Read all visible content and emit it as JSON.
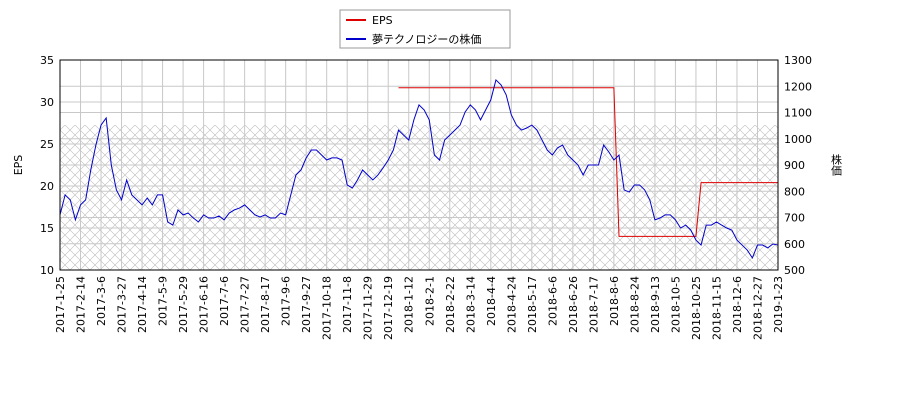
{
  "chart_data": {
    "type": "line",
    "categories": [
      "2017-1-25",
      null,
      null,
      null,
      "2017-2-14",
      null,
      null,
      null,
      "2017-3-6",
      null,
      null,
      null,
      "2017-3-27",
      null,
      null,
      null,
      "2017-4-14",
      null,
      null,
      null,
      "2017-5-9",
      null,
      null,
      null,
      "2017-5-29",
      null,
      null,
      null,
      "2017-6-16",
      null,
      null,
      null,
      "2017-7-6",
      null,
      null,
      null,
      "2017-7-27",
      null,
      null,
      null,
      "2017-8-17",
      null,
      null,
      null,
      "2017-9-6",
      null,
      null,
      null,
      "2017-9-27",
      null,
      null,
      null,
      "2017-10-18",
      null,
      null,
      null,
      "2017-11-8",
      null,
      null,
      null,
      "2017-11-29",
      null,
      null,
      null,
      "2017-12-19",
      null,
      null,
      null,
      "2018-1-12",
      null,
      null,
      null,
      "2018-2-1",
      null,
      null,
      null,
      "2018-2-22",
      null,
      null,
      null,
      "2018-3-14",
      null,
      null,
      null,
      "2018-4-4",
      null,
      null,
      null,
      "2018-4-24",
      null,
      null,
      null,
      "2018-5-17",
      null,
      null,
      null,
      "2018-6-6",
      null,
      null,
      null,
      "2018-6-26",
      null,
      null,
      null,
      "2018-7-17",
      null,
      null,
      null,
      "2018-8-6",
      null,
      null,
      null,
      "2018-8-24",
      null,
      null,
      null,
      "2018-9-13",
      null,
      null,
      null,
      "2018-10-5",
      null,
      null,
      null,
      "2018-10-25",
      null,
      null,
      null,
      "2018-11-15",
      null,
      null,
      null,
      "2018-12-6",
      null,
      null,
      null,
      "2018-12-27",
      null,
      null,
      null,
      "2019-1-23"
    ],
    "series": [
      {
        "name": "EPS",
        "color": "#dd0000",
        "values": [
          null,
          null,
          null,
          null,
          null,
          null,
          null,
          null,
          null,
          null,
          null,
          null,
          null,
          null,
          null,
          null,
          null,
          null,
          null,
          null,
          null,
          null,
          null,
          null,
          null,
          null,
          null,
          null,
          null,
          null,
          null,
          null,
          null,
          null,
          null,
          null,
          null,
          null,
          null,
          null,
          null,
          null,
          null,
          null,
          null,
          null,
          null,
          null,
          null,
          null,
          null,
          null,
          null,
          null,
          null,
          null,
          null,
          null,
          null,
          null,
          null,
          null,
          null,
          null,
          null,
          null,
          31.7,
          31.7,
          31.7,
          31.7,
          31.7,
          31.7,
          31.7,
          31.7,
          31.7,
          31.7,
          31.7,
          31.7,
          31.7,
          31.7,
          31.7,
          31.7,
          31.7,
          31.7,
          31.7,
          31.7,
          31.7,
          31.7,
          31.7,
          31.7,
          31.7,
          31.7,
          31.7,
          31.7,
          31.7,
          31.7,
          31.7,
          31.7,
          31.7,
          31.7,
          31.7,
          31.7,
          31.7,
          31.7,
          31.7,
          31.7,
          31.7,
          31.7,
          31.7,
          14,
          14,
          14,
          14,
          14,
          14,
          14,
          14,
          14,
          14,
          14,
          14,
          14,
          14,
          14,
          14,
          20.4,
          20.4,
          20.4,
          20.4,
          20.4,
          20.4,
          20.4,
          20.4,
          20.4,
          20.4,
          20.4,
          20.4,
          20.4,
          20.4,
          20.4,
          20.4
        ]
      },
      {
        "name": "夢テクノロジーの株価",
        "color": "#0000cc",
        "axis": "y2",
        "values": [
          710,
          786,
          767,
          691,
          748,
          767,
          881,
          976,
          1052,
          1079,
          900,
          805,
          767,
          843,
          786,
          767,
          748,
          774,
          748,
          786,
          786,
          683,
          671,
          729,
          710,
          717,
          698,
          683,
          710,
          698,
          698,
          706,
          691,
          717,
          729,
          736,
          748,
          729,
          710,
          702,
          710,
          698,
          698,
          717,
          710,
          786,
          862,
          881,
          927,
          957,
          957,
          938,
          919,
          927,
          927,
          919,
          824,
          812,
          843,
          881,
          862,
          843,
          862,
          889,
          919,
          957,
          1033,
          1014,
          995,
          1072,
          1129,
          1110,
          1072,
          938,
          919,
          995,
          1014,
          1033,
          1052,
          1102,
          1129,
          1110,
          1072,
          1110,
          1148,
          1224,
          1205,
          1167,
          1091,
          1052,
          1033,
          1041,
          1052,
          1033,
          995,
          957,
          938,
          965,
          976,
          938,
          919,
          900,
          862,
          900,
          900,
          900,
          976,
          950,
          919,
          938,
          805,
          797,
          824,
          824,
          805,
          767,
          691,
          698,
          710,
          710,
          691,
          660,
          671,
          652,
          614,
          595,
          671,
          671,
          683,
          671,
          660,
          652,
          614,
          595,
          576,
          546,
          595,
          595,
          584,
          599,
          595
        ]
      }
    ],
    "ylabel": "EPS",
    "y2label": "株価",
    "ylim": [
      10,
      35
    ],
    "yticks": [
      10,
      15,
      20,
      25,
      30,
      35
    ],
    "y2lim": [
      500,
      1300
    ],
    "y2ticks": [
      500,
      600,
      700,
      800,
      900,
      1000,
      1100,
      1200,
      1300
    ],
    "grid": true,
    "legend": "upper center"
  }
}
